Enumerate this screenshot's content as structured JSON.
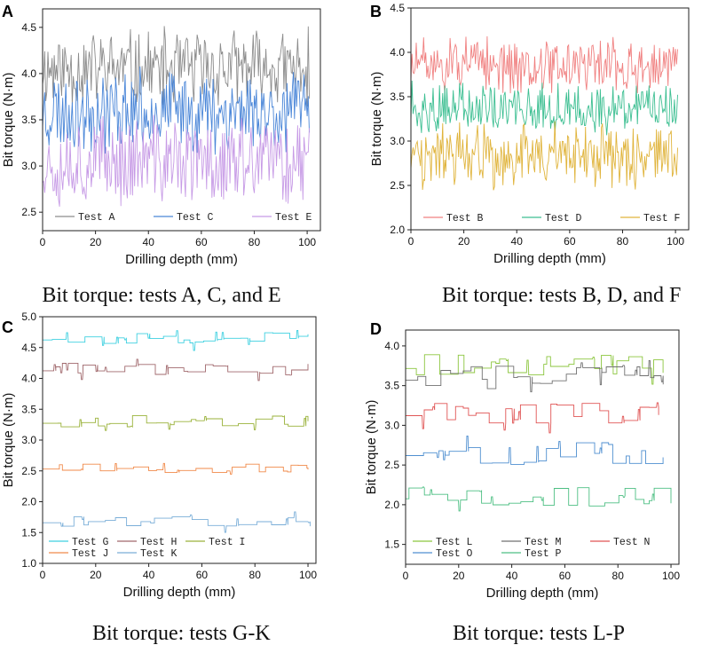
{
  "chart_data": [
    {
      "type": "line",
      "panel_label": "A",
      "caption": "Bit torque: tests A, C, and E",
      "xlabel": "Drilling depth (mm)",
      "ylabel": "Bit torque (N·m)",
      "xlim": [
        0,
        105
      ],
      "ylim": [
        2.3,
        4.7
      ],
      "xticks": [
        0,
        20,
        40,
        60,
        80,
        100
      ],
      "yticks": [
        2.5,
        3.0,
        3.5,
        4.0,
        4.5
      ],
      "ytick_labels": [
        "2.5",
        "3.0",
        "3.5",
        "4.0",
        "4.5"
      ],
      "legend_position": "bottom",
      "series": [
        {
          "name": "Test A",
          "color": "#8c8c8c",
          "x_range": [
            0,
            101
          ],
          "mean": 4.05,
          "spread": 0.48,
          "style": "noisy",
          "seed": 11
        },
        {
          "name": "Test C",
          "color": "#4a86d8",
          "x_range": [
            0,
            101
          ],
          "mean": 3.6,
          "spread": 0.5,
          "style": "noisy",
          "seed": 23
        },
        {
          "name": "Test E",
          "color": "#c79be6",
          "x_range": [
            0,
            101
          ],
          "mean": 3.05,
          "spread": 0.55,
          "style": "noisy",
          "seed": 37
        }
      ]
    },
    {
      "type": "line",
      "panel_label": "B",
      "caption": "Bit torque: tests B, D, and F",
      "xlabel": "Drilling depth (mm)",
      "ylabel": "Bit torque (N·m)",
      "xlim": [
        0,
        105
      ],
      "ylim": [
        2.0,
        4.5
      ],
      "xticks": [
        0,
        20,
        40,
        60,
        80,
        100
      ],
      "yticks": [
        2.0,
        2.5,
        3.0,
        3.5,
        4.0,
        4.5
      ],
      "ytick_labels": [
        "2.0",
        "2.5",
        "3.0",
        "3.5",
        "4.0",
        "4.5"
      ],
      "legend_position": "bottom",
      "series": [
        {
          "name": "Test B",
          "color": "#f08080",
          "x_range": [
            0,
            101
          ],
          "mean": 3.85,
          "spread": 0.35,
          "style": "noisy",
          "seed": 51
        },
        {
          "name": "Test D",
          "color": "#3dbf92",
          "x_range": [
            0,
            101
          ],
          "mean": 3.38,
          "spread": 0.33,
          "style": "noisy",
          "seed": 63
        },
        {
          "name": "Test F",
          "color": "#e0b43c",
          "x_range": [
            0,
            101
          ],
          "mean": 2.82,
          "spread": 0.42,
          "style": "noisy",
          "seed": 77
        }
      ]
    },
    {
      "type": "line",
      "panel_label": "C",
      "caption": "Bit torque: tests G-K",
      "xlabel": "Drilling depth (mm)",
      "ylabel": "Bit torque (N·m)",
      "xlim": [
        0,
        103
      ],
      "ylim": [
        1.0,
        5.0
      ],
      "xticks": [
        0,
        20,
        40,
        60,
        80,
        100
      ],
      "yticks": [
        1.0,
        1.5,
        2.0,
        2.5,
        3.0,
        3.5,
        4.0,
        4.5,
        5.0
      ],
      "ytick_labels": [
        "1.0",
        "1.5",
        "2.0",
        "2.5",
        "3.0",
        "3.5",
        "4.0",
        "4.5",
        "5.0"
      ],
      "legend_position": "bottom",
      "series": [
        {
          "name": "Test G",
          "color": "#3fd0e0",
          "x_range": [
            0,
            100
          ],
          "mean": 4.65,
          "spread": 0.12,
          "style": "step",
          "seed": 101
        },
        {
          "name": "Test H",
          "color": "#a0686c",
          "x_range": [
            0,
            100
          ],
          "mean": 4.15,
          "spread": 0.12,
          "style": "step",
          "seed": 113
        },
        {
          "name": "Test I",
          "color": "#9ab23a",
          "x_range": [
            0,
            100
          ],
          "mean": 3.3,
          "spread": 0.13,
          "style": "step",
          "seed": 127
        },
        {
          "name": "Test J",
          "color": "#f08a4a",
          "x_range": [
            0,
            100
          ],
          "mean": 2.55,
          "spread": 0.1,
          "style": "step",
          "seed": 139
        },
        {
          "name": "Test K",
          "color": "#7aaed8",
          "x_range": [
            0,
            100
          ],
          "mean": 1.68,
          "spread": 0.1,
          "style": "step",
          "seed": 151
        }
      ]
    },
    {
      "type": "line",
      "panel_label": "D",
      "caption": "Bit torque: tests L-P",
      "xlabel": "Drilling depth (mm)",
      "ylabel": "Bit torque (N·m)",
      "xlim": [
        0,
        103
      ],
      "ylim": [
        1.25,
        4.2
      ],
      "xticks": [
        0,
        20,
        40,
        60,
        80,
        100
      ],
      "yticks": [
        1.5,
        2.0,
        2.5,
        3.0,
        3.5,
        4.0
      ],
      "ytick_labels": [
        "1.5",
        "2.0",
        "2.5",
        "3.0",
        "3.5",
        "4.0"
      ],
      "legend_position": "bottom",
      "series": [
        {
          "name": "Test L",
          "color": "#8cc63f",
          "x_range": [
            0,
            97
          ],
          "mean": 3.75,
          "spread": 0.18,
          "style": "step",
          "seed": 201
        },
        {
          "name": "Test M",
          "color": "#707070",
          "x_range": [
            0,
            97
          ],
          "mean": 3.6,
          "spread": 0.18,
          "style": "step",
          "seed": 213
        },
        {
          "name": "Test N",
          "color": "#e05555",
          "x_range": [
            0,
            95
          ],
          "mean": 3.15,
          "spread": 0.16,
          "style": "step",
          "seed": 227
        },
        {
          "name": "Test O",
          "color": "#4f8fd0",
          "x_range": [
            0,
            97
          ],
          "mean": 2.65,
          "spread": 0.18,
          "style": "step",
          "seed": 239
        },
        {
          "name": "Test P",
          "color": "#4dbf83",
          "x_range": [
            0,
            100
          ],
          "mean": 2.1,
          "spread": 0.15,
          "style": "step",
          "seed": 251
        }
      ]
    }
  ]
}
